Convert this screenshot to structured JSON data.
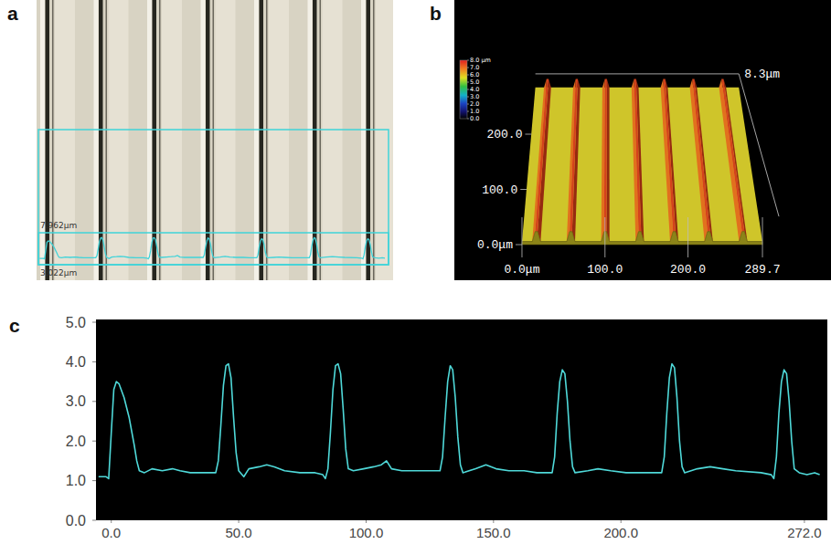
{
  "panel_labels": [
    "a",
    "b",
    "c"
  ],
  "micrograph": {
    "annotations": [
      "7.962μm",
      "3.022μm"
    ],
    "groove_count": 7
  },
  "surface": {
    "colorbar": {
      "range": [
        0,
        8
      ],
      "ticks": [
        {
          "value": 8,
          "label": "8.0 μm"
        },
        {
          "value": 7,
          "label": "7.0"
        },
        {
          "value": 6,
          "label": "6.0"
        },
        {
          "value": 5,
          "label": "5.0"
        },
        {
          "value": 4,
          "label": "4.0"
        },
        {
          "value": 3,
          "label": "3.0"
        },
        {
          "value": 2,
          "label": "2.0"
        },
        {
          "value": 1,
          "label": "1.0"
        },
        {
          "value": 0,
          "label": "0.0"
        }
      ]
    },
    "x_axis": {
      "range": [
        0,
        289.7
      ],
      "ticks": [
        {
          "value": 0,
          "label": "0.0μm"
        },
        {
          "value": 100,
          "label": "100.0"
        },
        {
          "value": 200,
          "label": "200.0"
        },
        {
          "value": 289.7,
          "label": "289.7"
        }
      ]
    },
    "y_axis": {
      "range": [
        0,
        280
      ],
      "ticks": [
        {
          "value": 0,
          "label": "0.0μm"
        },
        {
          "value": 100,
          "label": "100.0"
        },
        {
          "value": 200,
          "label": "200.0"
        }
      ]
    },
    "z_label": "8.3μm",
    "ridge_count": 7
  },
  "chart_data": {
    "type": "line",
    "color": "#4fd9d9",
    "grid": false,
    "x": [
      -5,
      -2,
      -1,
      0,
      1,
      2,
      3,
      5,
      7,
      9,
      10,
      11,
      13,
      16,
      20,
      24,
      27,
      31,
      37,
      41,
      42,
      43,
      44,
      45,
      46,
      47,
      48,
      49,
      50,
      52,
      54,
      58,
      61,
      64,
      68,
      74,
      80,
      83,
      84,
      85,
      86,
      87,
      88,
      89,
      90,
      91,
      92,
      93,
      95,
      99,
      103,
      106,
      108,
      110,
      114,
      120,
      124,
      129,
      130,
      131,
      132,
      133,
      134,
      135,
      136,
      137,
      138,
      143,
      147,
      151,
      156,
      162,
      167,
      173,
      174,
      175,
      176,
      177,
      178,
      179,
      180,
      181,
      182,
      187,
      191,
      196,
      202,
      207,
      213,
      216,
      217,
      218,
      219,
      220,
      221,
      222,
      223,
      224,
      225,
      230,
      235,
      240,
      245,
      255,
      259,
      260,
      261,
      262,
      263,
      264,
      265,
      266,
      267,
      268,
      270,
      273,
      276,
      278
    ],
    "values": [
      1.1,
      1.1,
      1.05,
      2.2,
      3.3,
      3.5,
      3.45,
      3.1,
      2.6,
      1.9,
      1.5,
      1.25,
      1.2,
      1.3,
      1.25,
      1.3,
      1.25,
      1.2,
      1.2,
      1.2,
      1.5,
      2.4,
      3.4,
      3.9,
      3.95,
      3.6,
      2.6,
      1.7,
      1.25,
      1.1,
      1.3,
      1.35,
      1.4,
      1.35,
      1.25,
      1.2,
      1.2,
      1.15,
      1.05,
      1.3,
      2.2,
      3.3,
      3.9,
      3.95,
      3.7,
      2.8,
      1.8,
      1.3,
      1.25,
      1.3,
      1.35,
      1.4,
      1.5,
      1.3,
      1.25,
      1.25,
      1.25,
      1.25,
      1.6,
      2.6,
      3.5,
      3.9,
      3.8,
      3.1,
      2.1,
      1.4,
      1.2,
      1.3,
      1.4,
      1.3,
      1.25,
      1.25,
      1.2,
      1.2,
      1.6,
      2.7,
      3.5,
      3.8,
      3.7,
      3.0,
      2.0,
      1.35,
      1.2,
      1.25,
      1.3,
      1.25,
      1.2,
      1.2,
      1.2,
      1.2,
      1.6,
      2.7,
      3.6,
      3.95,
      3.85,
      3.1,
      2.0,
      1.35,
      1.2,
      1.3,
      1.35,
      1.3,
      1.25,
      1.2,
      1.15,
      1.05,
      1.6,
      2.7,
      3.5,
      3.8,
      3.7,
      3.0,
      2.0,
      1.3,
      1.2,
      1.15,
      1.2,
      1.15
    ],
    "xlim": [
      -6,
      281
    ],
    "ylim": [
      0,
      5
    ],
    "xticks": [
      {
        "value": 0,
        "label": "0.0"
      },
      {
        "value": 50,
        "label": "50.0"
      },
      {
        "value": 100,
        "label": "100.0"
      },
      {
        "value": 150,
        "label": "150.0"
      },
      {
        "value": 200,
        "label": "200.0"
      },
      {
        "value": 272,
        "label": "272.0"
      }
    ],
    "yticks": [
      {
        "value": 0,
        "label": "0.0"
      },
      {
        "value": 1,
        "label": "1.0"
      },
      {
        "value": 2,
        "label": "2.0"
      },
      {
        "value": 3,
        "label": "3.0"
      },
      {
        "value": 4,
        "label": "4.0"
      },
      {
        "value": 5,
        "label": "5.0"
      }
    ]
  }
}
